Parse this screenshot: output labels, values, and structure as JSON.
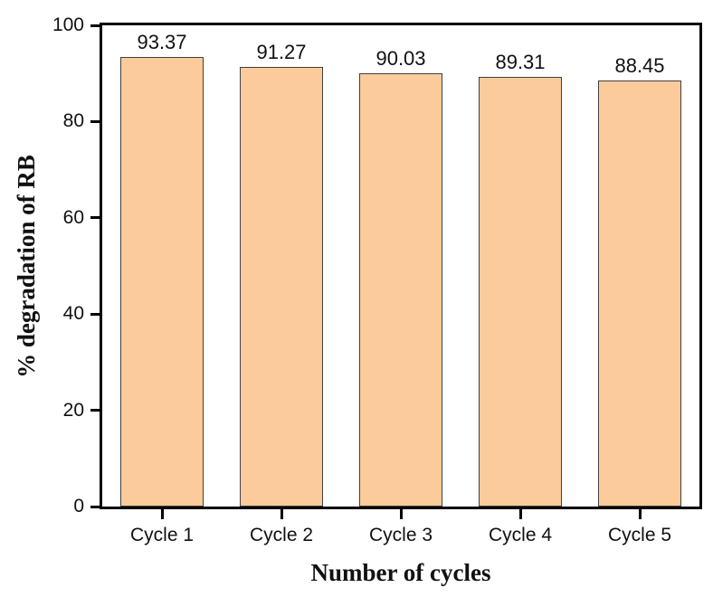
{
  "chart_data": {
    "type": "bar",
    "title": "",
    "xlabel": "Number of cycles",
    "ylabel": "% degradation of RB",
    "categories": [
      "Cycle 1",
      "Cycle 2",
      "Cycle 3",
      "Cycle 4",
      "Cycle 5"
    ],
    "values": [
      93.37,
      91.27,
      90.03,
      89.31,
      88.45
    ],
    "value_labels": [
      "93.37",
      "91.27",
      "90.03",
      "89.31",
      "88.45"
    ],
    "ylim": [
      0,
      100
    ],
    "yticks": [
      0,
      20,
      40,
      60,
      80,
      100
    ],
    "grid": false,
    "legend_position": "none",
    "colors": {
      "bar_fill": "#FBCB9B",
      "bar_border": "#404040",
      "axis": "#000000",
      "text": "#111111",
      "background": "#FFFFFF"
    }
  }
}
